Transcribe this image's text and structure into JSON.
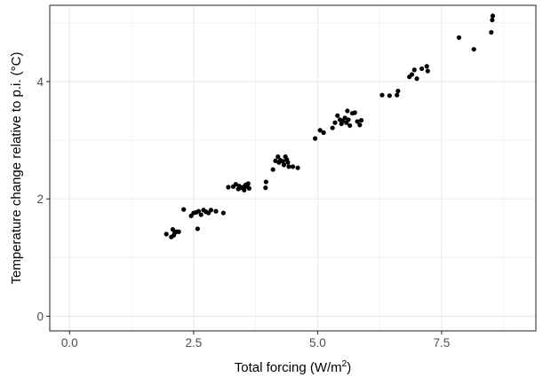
{
  "chart_data": {
    "type": "scatter",
    "title": "",
    "xlabel": "Total forcing (W/m",
    "xlabel_unit_sup": "2",
    "xlabel_suffix": ")",
    "ylabel": "Temperature change relative to p.i. (°C)",
    "xlim": [
      -0.4,
      9.4
    ],
    "ylim": [
      -0.25,
      5.3
    ],
    "x_ticks": [
      0,
      2.5,
      5,
      7.5
    ],
    "x_tick_labels": [
      "0.0",
      "2.5",
      "5.0",
      "7.5"
    ],
    "y_ticks": [
      0,
      2,
      4
    ],
    "y_tick_labels": [
      "0",
      "2",
      "4"
    ],
    "grid": true,
    "point_color": "#000000",
    "background": "#ffffff",
    "grid_color": "#ebebeb",
    "points": [
      [
        1.95,
        1.4
      ],
      [
        2.05,
        1.35
      ],
      [
        2.08,
        1.48
      ],
      [
        2.1,
        1.38
      ],
      [
        2.12,
        1.42
      ],
      [
        2.15,
        1.44
      ],
      [
        2.2,
        1.44
      ],
      [
        2.3,
        1.82
      ],
      [
        2.45,
        1.71
      ],
      [
        2.5,
        1.76
      ],
      [
        2.55,
        1.77
      ],
      [
        2.58,
        1.49
      ],
      [
        2.6,
        1.79
      ],
      [
        2.65,
        1.73
      ],
      [
        2.7,
        1.81
      ],
      [
        2.75,
        1.78
      ],
      [
        2.8,
        1.76
      ],
      [
        2.85,
        1.81
      ],
      [
        2.95,
        1.79
      ],
      [
        3.1,
        1.76
      ],
      [
        3.2,
        2.2
      ],
      [
        3.3,
        2.21
      ],
      [
        3.35,
        2.25
      ],
      [
        3.4,
        2.17
      ],
      [
        3.42,
        2.22
      ],
      [
        3.45,
        2.19
      ],
      [
        3.5,
        2.2
      ],
      [
        3.52,
        2.15
      ],
      [
        3.55,
        2.24
      ],
      [
        3.58,
        2.21
      ],
      [
        3.6,
        2.26
      ],
      [
        3.62,
        2.18
      ],
      [
        3.95,
        2.19
      ],
      [
        3.96,
        2.29
      ],
      [
        4.1,
        2.5
      ],
      [
        4.15,
        2.65
      ],
      [
        4.2,
        2.72
      ],
      [
        4.22,
        2.62
      ],
      [
        4.25,
        2.66
      ],
      [
        4.3,
        2.64
      ],
      [
        4.32,
        2.58
      ],
      [
        4.35,
        2.72
      ],
      [
        4.38,
        2.67
      ],
      [
        4.4,
        2.62
      ],
      [
        4.42,
        2.55
      ],
      [
        4.5,
        2.55
      ],
      [
        4.6,
        2.53
      ],
      [
        4.95,
        3.03
      ],
      [
        5.05,
        3.17
      ],
      [
        5.12,
        3.13
      ],
      [
        5.3,
        3.21
      ],
      [
        5.35,
        3.3
      ],
      [
        5.4,
        3.42
      ],
      [
        5.45,
        3.35
      ],
      [
        5.48,
        3.28
      ],
      [
        5.5,
        3.33
      ],
      [
        5.55,
        3.38
      ],
      [
        5.58,
        3.3
      ],
      [
        5.6,
        3.5
      ],
      [
        5.62,
        3.35
      ],
      [
        5.65,
        3.25
      ],
      [
        5.7,
        3.46
      ],
      [
        5.75,
        3.47
      ],
      [
        5.8,
        3.32
      ],
      [
        5.85,
        3.26
      ],
      [
        5.88,
        3.34
      ],
      [
        6.3,
        3.77
      ],
      [
        6.45,
        3.76
      ],
      [
        6.6,
        3.77
      ],
      [
        6.62,
        3.84
      ],
      [
        6.85,
        4.08
      ],
      [
        6.9,
        4.12
      ],
      [
        6.95,
        4.2
      ],
      [
        7.0,
        4.05
      ],
      [
        7.1,
        4.22
      ],
      [
        7.2,
        4.26
      ],
      [
        7.22,
        4.18
      ],
      [
        7.85,
        4.75
      ],
      [
        8.15,
        4.55
      ],
      [
        8.5,
        4.84
      ],
      [
        8.52,
        5.05
      ],
      [
        8.53,
        5.12
      ]
    ]
  }
}
